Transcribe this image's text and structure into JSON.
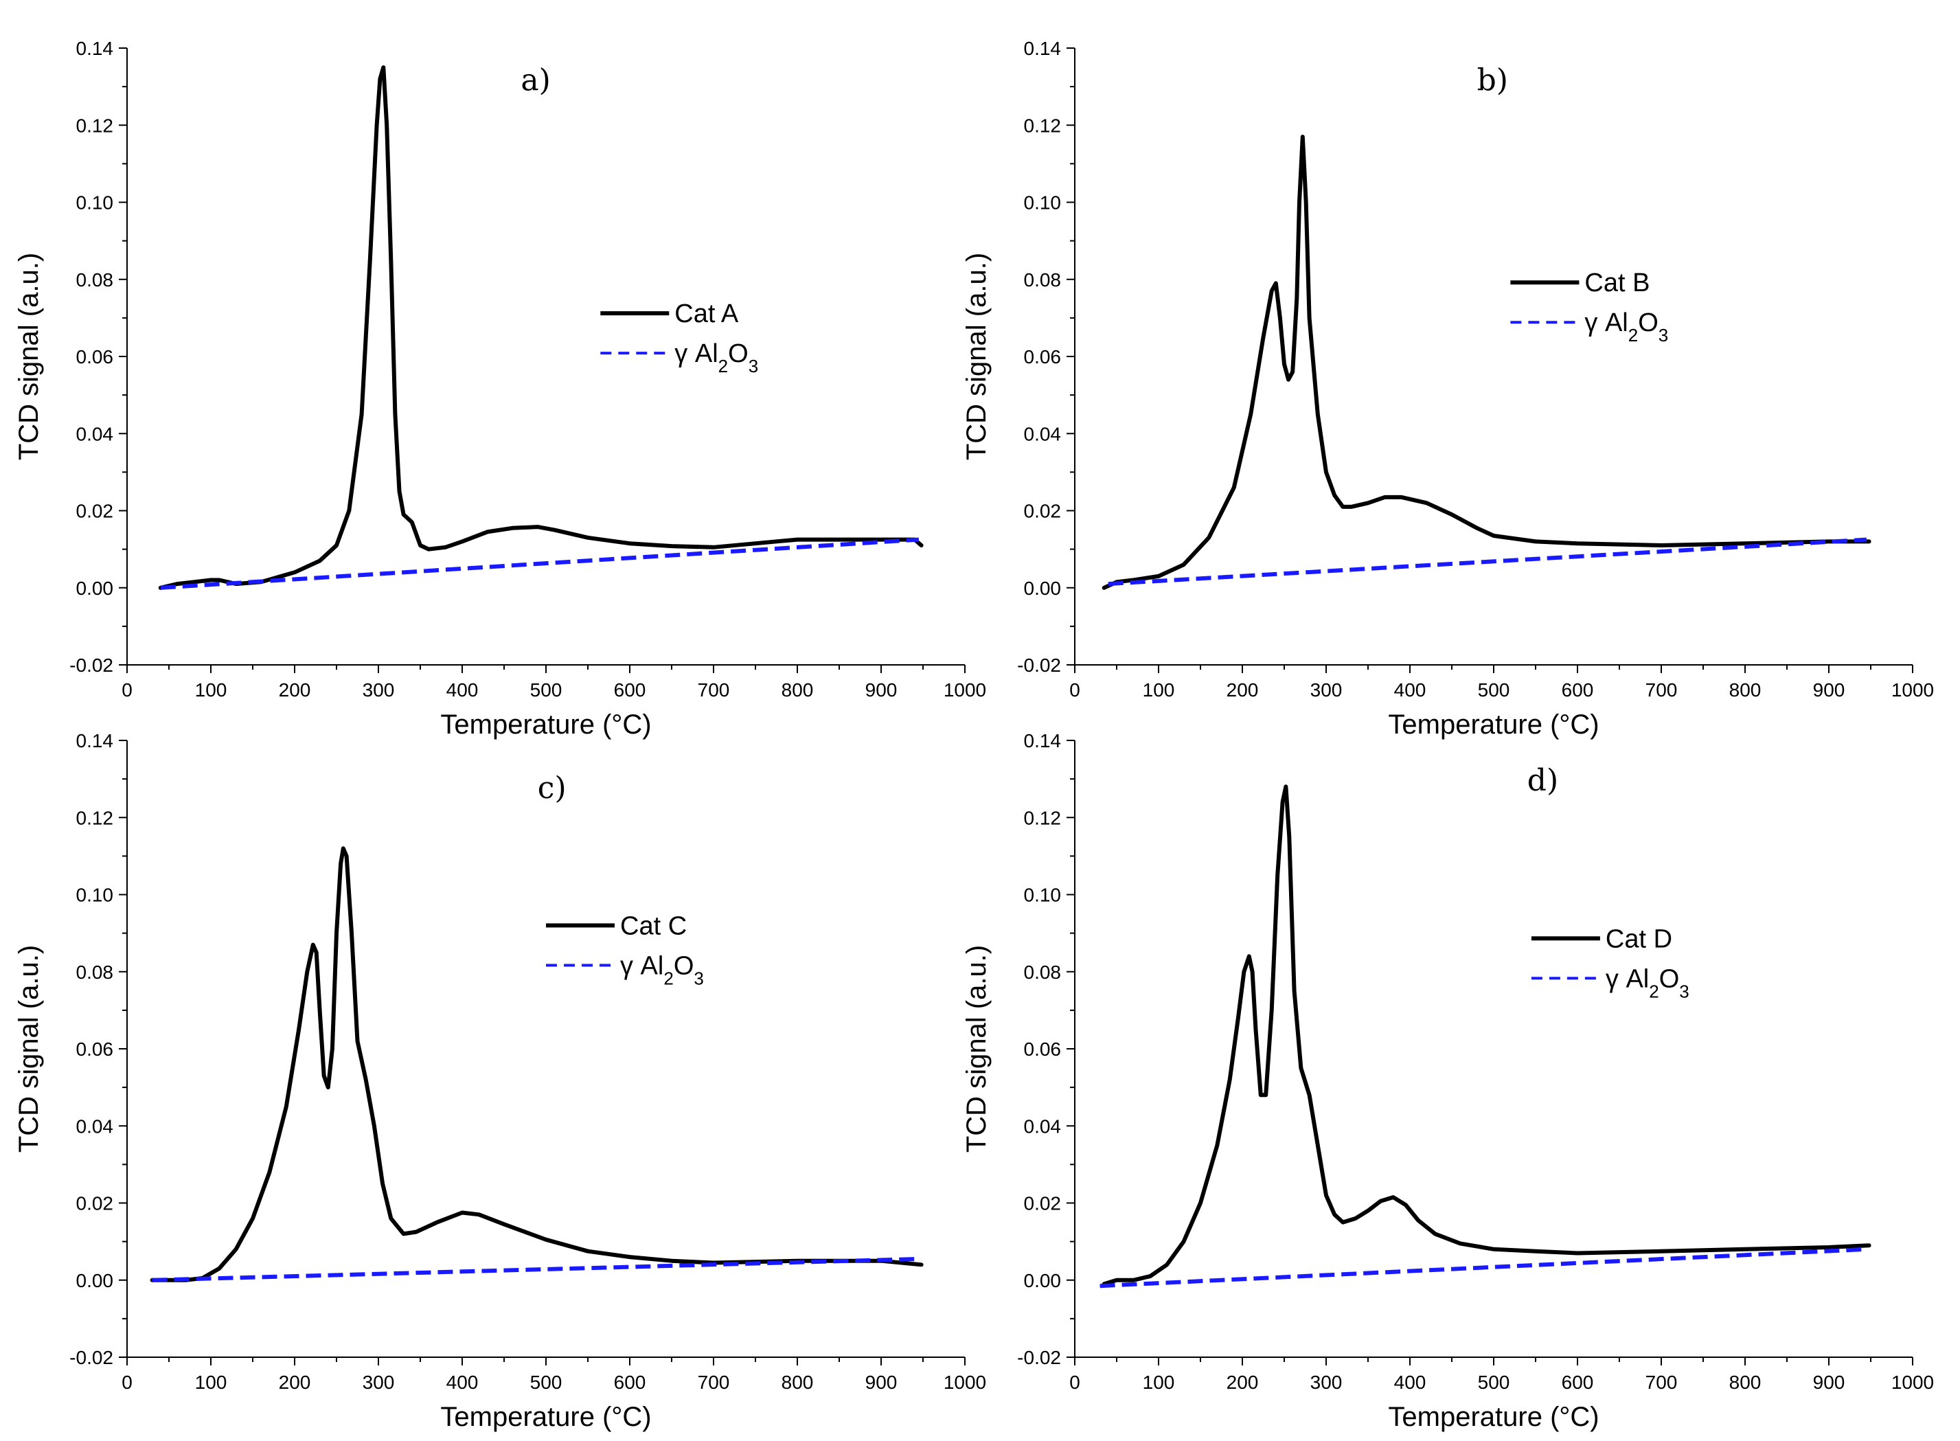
{
  "chart_data": [
    {
      "type": "line",
      "panel_label": "a)",
      "xlabel": "Temperature (°C)",
      "ylabel": "TCD signal (a.u.)",
      "xlim": [
        0,
        1000
      ],
      "ylim": [
        -0.02,
        0.14
      ],
      "xticks": [
        "0",
        "100",
        "200",
        "300",
        "400",
        "500",
        "600",
        "700",
        "800",
        "900",
        "1000"
      ],
      "yticks": [
        "-0.02",
        "0.00",
        "0.02",
        "0.04",
        "0.06",
        "0.08",
        "0.10",
        "0.12",
        "0.14"
      ],
      "legend_position": "center-right",
      "series": [
        {
          "name": "Cat A",
          "style": "solid",
          "color": "#000000",
          "x": [
            40,
            60,
            80,
            100,
            110,
            130,
            160,
            200,
            230,
            250,
            265,
            280,
            290,
            298,
            302,
            306,
            310,
            315,
            320,
            325,
            330,
            340,
            350,
            360,
            380,
            400,
            430,
            460,
            490,
            510,
            550,
            600,
            650,
            700,
            750,
            800,
            850,
            900,
            940,
            948
          ],
          "y": [
            0.0,
            0.001,
            0.0015,
            0.002,
            0.002,
            0.001,
            0.0015,
            0.004,
            0.007,
            0.011,
            0.02,
            0.045,
            0.085,
            0.12,
            0.132,
            0.135,
            0.12,
            0.085,
            0.045,
            0.025,
            0.019,
            0.017,
            0.011,
            0.01,
            0.0105,
            0.012,
            0.0145,
            0.0155,
            0.0158,
            0.015,
            0.013,
            0.0115,
            0.0108,
            0.0105,
            0.0115,
            0.0125,
            0.0125,
            0.0125,
            0.0125,
            0.011
          ]
        },
        {
          "name": "γ Al2O3",
          "legend_main": "γ Al",
          "legend_sub1": "2",
          "legend_mid": "O",
          "legend_sub2": "3",
          "style": "dashed",
          "color": "#1a1aff",
          "x": [
            40,
            945
          ],
          "y": [
            0.0,
            0.0125
          ]
        }
      ]
    },
    {
      "type": "line",
      "panel_label": "b)",
      "xlabel": "Temperature (°C)",
      "ylabel": "TCD signal (a.u.)",
      "xlim": [
        0,
        1000
      ],
      "ylim": [
        -0.02,
        0.14
      ],
      "xticks": [
        "0",
        "100",
        "200",
        "300",
        "400",
        "500",
        "600",
        "700",
        "800",
        "900",
        "1000"
      ],
      "yticks": [
        "-0.02",
        "0.00",
        "0.02",
        "0.04",
        "0.06",
        "0.08",
        "0.10",
        "0.12",
        "0.14"
      ],
      "legend_position": "top-right",
      "series": [
        {
          "name": "Cat B",
          "style": "solid",
          "color": "#000000",
          "x": [
            35,
            50,
            70,
            100,
            130,
            160,
            190,
            210,
            225,
            235,
            240,
            245,
            250,
            255,
            260,
            265,
            268,
            272,
            276,
            280,
            290,
            300,
            310,
            320,
            330,
            350,
            370,
            390,
            420,
            450,
            480,
            500,
            550,
            600,
            700,
            800,
            900,
            948
          ],
          "y": [
            0.0,
            0.0015,
            0.002,
            0.003,
            0.006,
            0.013,
            0.026,
            0.045,
            0.065,
            0.077,
            0.079,
            0.07,
            0.058,
            0.054,
            0.056,
            0.075,
            0.1,
            0.117,
            0.1,
            0.07,
            0.045,
            0.03,
            0.024,
            0.021,
            0.021,
            0.022,
            0.0235,
            0.0235,
            0.022,
            0.019,
            0.0155,
            0.0135,
            0.012,
            0.0115,
            0.011,
            0.0115,
            0.012,
            0.012
          ]
        },
        {
          "name": "γ Al2O3",
          "legend_main": "γ Al",
          "legend_sub1": "2",
          "legend_mid": "O",
          "legend_sub2": "3",
          "style": "dashed",
          "color": "#1a1aff",
          "x": [
            40,
            945
          ],
          "y": [
            0.001,
            0.0125
          ]
        }
      ]
    },
    {
      "type": "line",
      "panel_label": "c)",
      "xlabel": "Temperature (°C)",
      "ylabel": "TCD signal (a.u.)",
      "xlim": [
        0,
        1000
      ],
      "ylim": [
        -0.02,
        0.14
      ],
      "xticks": [
        "0",
        "100",
        "200",
        "300",
        "400",
        "500",
        "600",
        "700",
        "800",
        "900",
        "1000"
      ],
      "yticks": [
        "-0.02",
        "0.00",
        "0.02",
        "0.04",
        "0.06",
        "0.08",
        "0.10",
        "0.12",
        "0.14"
      ],
      "legend_position": "center-right",
      "series": [
        {
          "name": "Cat C",
          "style": "solid",
          "color": "#000000",
          "x": [
            30,
            50,
            70,
            90,
            110,
            130,
            150,
            170,
            190,
            205,
            215,
            222,
            226,
            230,
            235,
            240,
            245,
            250,
            255,
            258,
            262,
            268,
            275,
            285,
            295,
            305,
            315,
            330,
            345,
            370,
            400,
            420,
            450,
            500,
            550,
            600,
            650,
            700,
            800,
            900,
            948
          ],
          "y": [
            0.0,
            0.0,
            0.0,
            0.0005,
            0.003,
            0.008,
            0.016,
            0.028,
            0.045,
            0.065,
            0.08,
            0.087,
            0.085,
            0.07,
            0.053,
            0.05,
            0.06,
            0.09,
            0.108,
            0.112,
            0.11,
            0.09,
            0.062,
            0.052,
            0.04,
            0.025,
            0.016,
            0.012,
            0.0125,
            0.015,
            0.0175,
            0.017,
            0.0145,
            0.0105,
            0.0075,
            0.006,
            0.005,
            0.0045,
            0.005,
            0.005,
            0.004
          ]
        },
        {
          "name": "γ Al2O3",
          "legend_main": "γ Al",
          "legend_sub1": "2",
          "legend_mid": "O",
          "legend_sub2": "3",
          "style": "dashed",
          "color": "#1a1aff",
          "x": [
            30,
            945
          ],
          "y": [
            0.0,
            0.0055
          ]
        }
      ]
    },
    {
      "type": "line",
      "panel_label": "d)",
      "xlabel": "Temperature (°C)",
      "ylabel": "TCD signal (a.u.)",
      "xlim": [
        0,
        1000
      ],
      "ylim": [
        -0.02,
        0.14
      ],
      "xticks": [
        "0",
        "100",
        "200",
        "300",
        "400",
        "500",
        "600",
        "700",
        "800",
        "900",
        "1000"
      ],
      "yticks": [
        "-0.02",
        "0.00",
        "0.02",
        "0.04",
        "0.06",
        "0.08",
        "0.10",
        "0.12",
        "0.14"
      ],
      "legend_position": "center-right",
      "series": [
        {
          "name": "Cat D",
          "style": "solid",
          "color": "#000000",
          "x": [
            35,
            50,
            70,
            90,
            110,
            130,
            150,
            170,
            185,
            195,
            202,
            208,
            212,
            216,
            222,
            228,
            235,
            242,
            248,
            252,
            256,
            262,
            270,
            280,
            290,
            300,
            310,
            320,
            335,
            350,
            365,
            380,
            395,
            410,
            430,
            460,
            500,
            550,
            600,
            700,
            800,
            900,
            948
          ],
          "y": [
            -0.001,
            0.0,
            0.0,
            0.001,
            0.004,
            0.01,
            0.02,
            0.035,
            0.052,
            0.068,
            0.08,
            0.084,
            0.08,
            0.065,
            0.048,
            0.048,
            0.07,
            0.105,
            0.124,
            0.128,
            0.115,
            0.075,
            0.055,
            0.048,
            0.035,
            0.022,
            0.017,
            0.015,
            0.016,
            0.018,
            0.0205,
            0.0215,
            0.0195,
            0.0155,
            0.012,
            0.0095,
            0.008,
            0.0075,
            0.007,
            0.0075,
            0.008,
            0.0085,
            0.009
          ]
        },
        {
          "name": "γ Al2O3",
          "legend_main": "γ Al",
          "legend_sub1": "2",
          "legend_mid": "O",
          "legend_sub2": "3",
          "style": "dashed",
          "color": "#1a1aff",
          "x": [
            30,
            945
          ],
          "y": [
            -0.0015,
            0.008
          ]
        }
      ]
    }
  ]
}
